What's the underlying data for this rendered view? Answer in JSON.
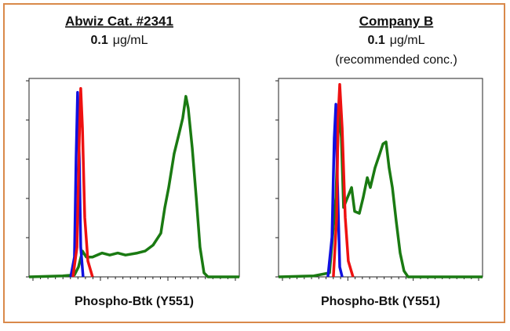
{
  "chart_data": [
    {
      "type": "line",
      "title": "Abwiz Cat. #2341",
      "concentration_value": "0.1",
      "concentration_unit": "μg/mL",
      "x_label": "Phospho-Btk (Y551)",
      "xlim": [
        0,
        100
      ],
      "ylim": [
        0,
        100
      ],
      "series": [
        {
          "color": "#1a7a12",
          "x": [
            0,
            16,
            21.6,
            23.5,
            25.4,
            27.2,
            30.2,
            34.7,
            38.4,
            42.2,
            45.9,
            51.5,
            55.2,
            59,
            62.7,
            64.6,
            66.4,
            69,
            71.3,
            73.1,
            74.6,
            75.7,
            77.6,
            79.5,
            81.3,
            83.2,
            85.1,
            100
          ],
          "values": [
            0,
            0.5,
            1,
            5,
            13,
            10,
            10,
            12,
            11,
            12,
            11,
            12,
            13,
            16,
            22,
            35,
            45,
            62,
            72,
            80,
            91,
            85,
            65,
            40,
            15,
            2,
            0,
            0
          ]
        },
        {
          "color": "#1010e0",
          "x": [
            19.8,
            21.6,
            22.4,
            23.1,
            23.9,
            24.6,
            25.7
          ],
          "values": [
            0,
            10,
            60,
            93,
            60,
            15,
            0
          ]
        },
        {
          "color": "#ee1111",
          "x": [
            20.9,
            22.8,
            23.9,
            24.6,
            25.4,
            26.5,
            28,
            30.2
          ],
          "values": [
            0,
            15,
            70,
            95,
            75,
            30,
            8,
            0
          ]
        }
      ]
    },
    {
      "type": "line",
      "title": "Company B",
      "concentration_value": "0.1",
      "concentration_unit": "μg/mL",
      "note": "(recommended conc.)",
      "x_label": "Phospho-Btk (Y551)",
      "xlim": [
        0,
        100
      ],
      "ylim": [
        0,
        100
      ],
      "series": [
        {
          "color": "#1a7a12",
          "x": [
            0,
            17.3,
            25,
            28.1,
            29.6,
            30.8,
            31.9,
            33.8,
            35.8,
            37.3,
            39.6,
            41.5,
            43.5,
            45,
            47.3,
            49.6,
            51.2,
            52.7,
            54.2,
            55.8,
            57.7,
            59.6,
            61.5,
            63.5,
            100
          ],
          "values": [
            0,
            0.5,
            2,
            40,
            85,
            70,
            35,
            40,
            45,
            33,
            32,
            40,
            50,
            45,
            55,
            62,
            67,
            68,
            55,
            45,
            28,
            12,
            3,
            0,
            0
          ]
        },
        {
          "color": "#1010e0",
          "x": [
            24.2,
            26.2,
            27.3,
            28.1,
            28.8,
            30,
            31.2
          ],
          "values": [
            0,
            20,
            70,
            87,
            50,
            5,
            0
          ]
        },
        {
          "color": "#ee1111",
          "x": [
            26.9,
            28.5,
            29.2,
            30,
            31.2,
            32.7,
            34.2,
            36.5
          ],
          "values": [
            0,
            30,
            80,
            97,
            75,
            30,
            8,
            0
          ]
        }
      ]
    }
  ]
}
